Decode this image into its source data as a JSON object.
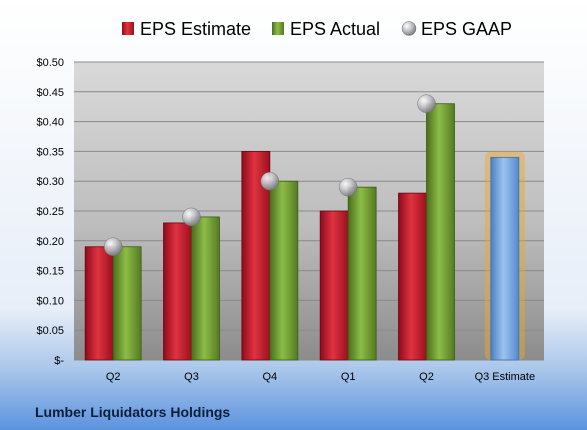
{
  "chart_data": {
    "type": "bar",
    "categories": [
      "Q2",
      "Q3",
      "Q4",
      "Q1",
      "Q2",
      "Q3 Estimate"
    ],
    "series": [
      {
        "name": "EPS Estimate",
        "values": [
          0.19,
          0.23,
          0.35,
          0.25,
          0.28,
          null
        ],
        "color": "#c8102e"
      },
      {
        "name": "EPS Actual",
        "values": [
          0.19,
          0.24,
          0.3,
          0.29,
          0.43,
          null
        ],
        "color": "#6e9a2e"
      },
      {
        "name": "EPS GAAP",
        "marker": "sphere",
        "values": [
          0.19,
          0.24,
          0.3,
          0.29,
          0.43,
          null
        ],
        "color": "#b8b8c0"
      }
    ],
    "estimate": {
      "category": "Q3 Estimate",
      "value": 0.34,
      "color": "#6f9fd8",
      "glow": "#f5a623"
    },
    "y_ticks": [
      "$-",
      "$0.05",
      "$0.10",
      "$0.15",
      "$0.20",
      "$0.25",
      "$0.30",
      "$0.35",
      "$0.40",
      "$0.45",
      "$0.50"
    ],
    "ylim": [
      0,
      0.5
    ],
    "legend_position": "top",
    "grid": true,
    "company": "Lumber Liquidators Holdings"
  }
}
